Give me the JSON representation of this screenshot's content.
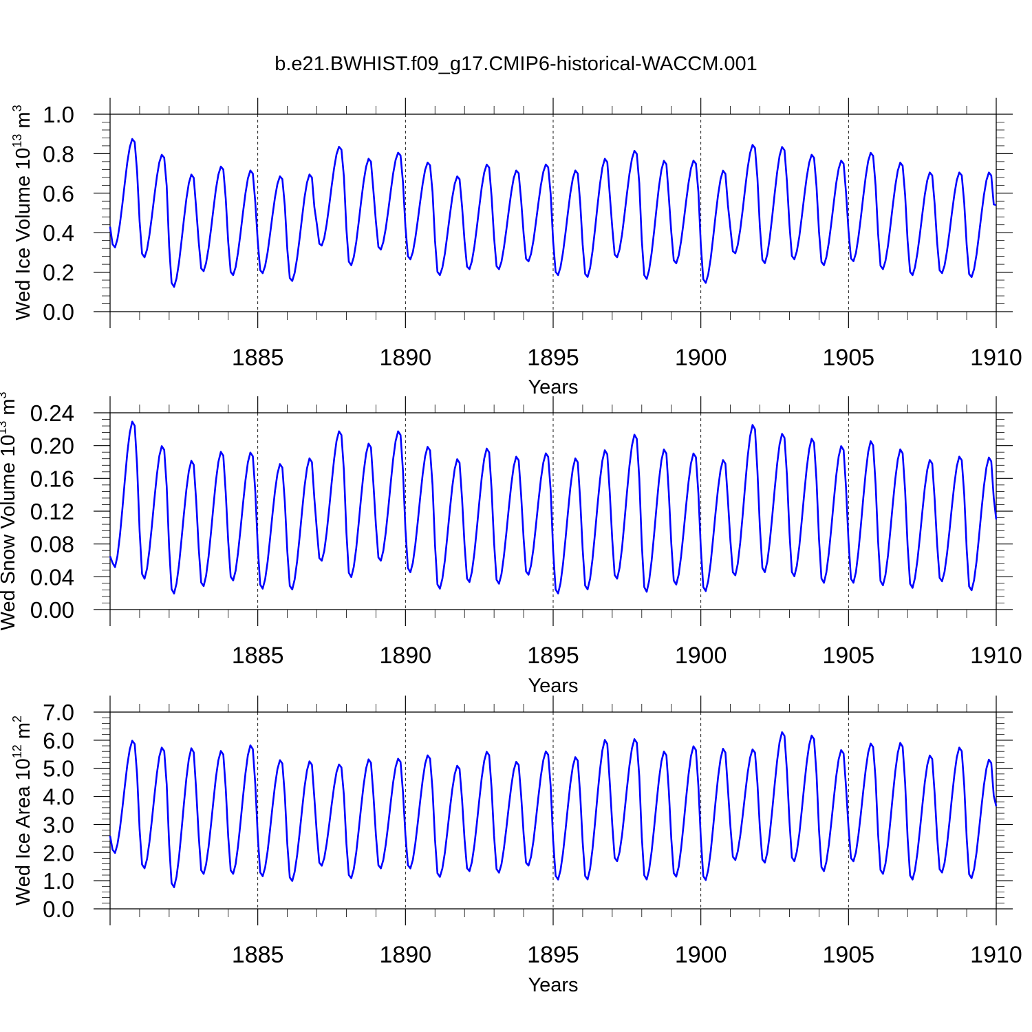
{
  "title": "b.e21.BWHIST.f09_g17.CMIP6-historical-WACCM.001",
  "colors": {
    "series": "#0000ff",
    "axes": "#000000",
    "background": "#ffffff"
  },
  "chart_data": [
    {
      "type": "line",
      "ylabel": {
        "text": "Wed Ice Volume 10",
        "sup": "13",
        "unit": " m",
        "unit_sup": "3"
      },
      "xlabel": "Years",
      "xlim": [
        1880.0,
        1910.0
      ],
      "ylim": [
        0.0,
        1.0
      ],
      "yticks": [
        0.0,
        0.2,
        0.4,
        0.6,
        0.8,
        1.0
      ],
      "ytick_labels": [
        "0.0",
        "0.2",
        "0.4",
        "0.6",
        "0.8",
        "1.0"
      ],
      "xticks": [
        1885,
        1890,
        1895,
        1900,
        1905,
        1910
      ],
      "xtick_labels": [
        "1885",
        "1890",
        "1895",
        "1900",
        "1905",
        "1910"
      ],
      "reference_lines_x": [
        1885,
        1890,
        1895,
        1900,
        1905
      ],
      "series": [
        {
          "name": "Wed Ice Volume",
          "start_year": 1880.0,
          "step": 0.0833,
          "monthly_minima": [
            0.32,
            0.27,
            0.12,
            0.2,
            0.18,
            0.19,
            0.15,
            0.33,
            0.23,
            0.31,
            0.26,
            0.18,
            0.21,
            0.21,
            0.25,
            0.18,
            0.17,
            0.27,
            0.16,
            0.24,
            0.14,
            0.29,
            0.24,
            0.26,
            0.23,
            0.25,
            0.21,
            0.18,
            0.19,
            0.17
          ],
          "monthly_maxima": [
            0.88,
            0.8,
            0.7,
            0.74,
            0.72,
            0.69,
            0.7,
            0.84,
            0.78,
            0.81,
            0.76,
            0.69,
            0.75,
            0.72,
            0.75,
            0.72,
            0.78,
            0.82,
            0.77,
            0.77,
            0.72,
            0.85,
            0.84,
            0.8,
            0.77,
            0.81,
            0.76,
            0.71,
            0.71,
            0.71
          ],
          "first_value": 0.43,
          "last_value": 0.54
        }
      ]
    },
    {
      "type": "line",
      "ylabel": {
        "text": "Wed Snow Volume 10",
        "sup": "13",
        "unit": " m",
        "unit_sup": "3"
      },
      "xlabel": "Years",
      "xlim": [
        1880.0,
        1910.0
      ],
      "ylim": [
        0.0,
        0.24
      ],
      "yticks": [
        0.0,
        0.04,
        0.08,
        0.12,
        0.16,
        0.2,
        0.24
      ],
      "ytick_labels": [
        "0.00",
        "0.04",
        "0.08",
        "0.12",
        "0.16",
        "0.20",
        "0.24"
      ],
      "xticks": [
        1885,
        1890,
        1895,
        1900,
        1905,
        1910
      ],
      "xtick_labels": [
        "1885",
        "1890",
        "1895",
        "1900",
        "1905",
        "1910"
      ],
      "reference_lines_x": [
        1885,
        1890,
        1895,
        1900,
        1905
      ],
      "series": [
        {
          "name": "Wed Snow Volume",
          "start_year": 1880.0,
          "step": 0.0833,
          "monthly_minima": [
            0.05,
            0.036,
            0.018,
            0.027,
            0.034,
            0.024,
            0.023,
            0.058,
            0.038,
            0.058,
            0.044,
            0.024,
            0.032,
            0.03,
            0.041,
            0.018,
            0.023,
            0.036,
            0.02,
            0.029,
            0.021,
            0.04,
            0.044,
            0.039,
            0.031,
            0.031,
            0.028,
            0.025,
            0.033,
            0.022
          ],
          "monthly_maxima": [
            0.231,
            0.201,
            0.183,
            0.194,
            0.193,
            0.179,
            0.186,
            0.219,
            0.204,
            0.219,
            0.2,
            0.185,
            0.198,
            0.188,
            0.192,
            0.186,
            0.196,
            0.215,
            0.197,
            0.192,
            0.184,
            0.227,
            0.216,
            0.21,
            0.201,
            0.207,
            0.197,
            0.184,
            0.188,
            0.187
          ],
          "first_value": 0.065,
          "last_value": 0.11
        }
      ]
    },
    {
      "type": "line",
      "ylabel": {
        "text": "Wed Ice Area 10",
        "sup": "12",
        "unit": " m",
        "unit_sup": "2"
      },
      "xlabel": "Years",
      "xlim": [
        1880.0,
        1910.0
      ],
      "ylim": [
        0.0,
        7.0
      ],
      "yticks": [
        0.0,
        1.0,
        2.0,
        3.0,
        4.0,
        5.0,
        6.0,
        7.0
      ],
      "ytick_labels": [
        "0.0",
        "1.0",
        "2.0",
        "3.0",
        "4.0",
        "5.0",
        "6.0",
        "7.0"
      ],
      "xticks": [
        1885,
        1890,
        1895,
        1900,
        1905,
        1910
      ],
      "xtick_labels": [
        "1885",
        "1890",
        "1895",
        "1900",
        "1905",
        "1910"
      ],
      "reference_lines_x": [
        1885,
        1890,
        1895,
        1900,
        1905
      ],
      "series": [
        {
          "name": "Wed Ice Area",
          "start_year": 1880.0,
          "step": 0.0833,
          "monthly_minima": [
            1.95,
            1.4,
            0.72,
            1.2,
            1.2,
            1.12,
            0.95,
            1.5,
            1.05,
            1.4,
            1.4,
            1.1,
            1.3,
            1.25,
            1.5,
            1.0,
            1.0,
            1.65,
            1.0,
            1.1,
            0.98,
            1.7,
            1.6,
            1.65,
            1.3,
            1.65,
            1.2,
            1.0,
            1.25,
            1.05
          ],
          "monthly_maxima": [
            6.02,
            5.78,
            5.76,
            5.66,
            5.86,
            5.33,
            5.29,
            5.17,
            5.36,
            5.38,
            5.5,
            5.13,
            5.63,
            5.27,
            5.64,
            5.44,
            6.06,
            6.08,
            5.64,
            5.83,
            5.74,
            5.71,
            6.33,
            6.21,
            5.69,
            5.92,
            5.95,
            5.5,
            5.78,
            5.35
          ],
          "first_value": 2.6,
          "last_value": 3.65
        }
      ]
    }
  ]
}
